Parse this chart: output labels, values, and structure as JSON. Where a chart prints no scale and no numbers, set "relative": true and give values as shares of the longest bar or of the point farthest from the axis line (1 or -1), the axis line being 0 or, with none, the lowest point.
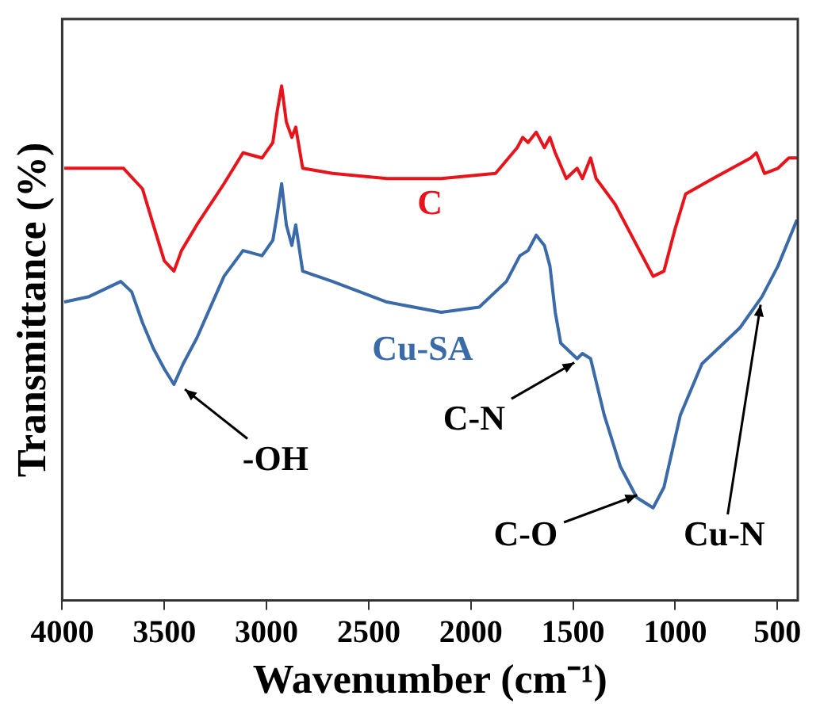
{
  "chart_data": {
    "type": "line",
    "xlabel": "Wavenumber (cm⁻¹)",
    "ylabel": "Transmittance (%)",
    "relative": true,
    "xlim": [
      4000,
      400
    ],
    "xticks": [
      4000,
      3500,
      3000,
      2500,
      2000,
      1500,
      1000,
      500
    ],
    "grid": false,
    "legend": false,
    "marker": "none",
    "line_style": "solid",
    "series": [
      {
        "name": "C",
        "color": "#e8141c",
        "x": [
          3990,
          3700,
          3607,
          3554,
          3500,
          3453,
          3416,
          3341,
          3208,
          3115,
          3022,
          2969,
          2948,
          2926,
          2903,
          2876,
          2857,
          2823,
          2677,
          2411,
          2145,
          1879,
          1773,
          1746,
          1720,
          1680,
          1640,
          1613,
          1587,
          1533,
          1480,
          1454,
          1414,
          1387,
          1294,
          1188,
          1108,
          1055,
          1002,
          949,
          815,
          630,
          603,
          563,
          497,
          444,
          404
        ],
        "values": [
          0.84,
          0.84,
          0.8,
          0.73,
          0.66,
          0.64,
          0.68,
          0.73,
          0.81,
          0.87,
          0.86,
          0.89,
          0.95,
          1.0,
          0.93,
          0.9,
          0.92,
          0.84,
          0.83,
          0.82,
          0.82,
          0.83,
          0.88,
          0.9,
          0.89,
          0.91,
          0.88,
          0.9,
          0.87,
          0.82,
          0.84,
          0.82,
          0.86,
          0.82,
          0.77,
          0.69,
          0.63,
          0.64,
          0.72,
          0.79,
          0.82,
          0.86,
          0.87,
          0.83,
          0.84,
          0.86,
          0.86
        ]
      },
      {
        "name": "Cu-SA",
        "color": "#3a6aa8",
        "x": [
          3990,
          3872,
          3713,
          3660,
          3607,
          3554,
          3500,
          3453,
          3408,
          3341,
          3208,
          3115,
          3022,
          2969,
          2948,
          2926,
          2903,
          2876,
          2857,
          2823,
          2677,
          2411,
          2145,
          1959,
          1826,
          1760,
          1720,
          1680,
          1640,
          1613,
          1587,
          1560,
          1480,
          1454,
          1414,
          1347,
          1268,
          1188,
          1108,
          1055,
          975,
          869,
          683,
          576,
          497,
          404
        ],
        "values": [
          0.58,
          0.59,
          0.62,
          0.6,
          0.54,
          0.49,
          0.45,
          0.42,
          0.46,
          0.51,
          0.63,
          0.68,
          0.67,
          0.7,
          0.75,
          0.81,
          0.73,
          0.69,
          0.73,
          0.64,
          0.62,
          0.58,
          0.56,
          0.57,
          0.62,
          0.67,
          0.68,
          0.71,
          0.69,
          0.65,
          0.56,
          0.5,
          0.47,
          0.48,
          0.47,
          0.36,
          0.26,
          0.2,
          0.18,
          0.22,
          0.36,
          0.46,
          0.53,
          0.59,
          0.65,
          0.74
        ]
      }
    ],
    "annotations": [
      {
        "text": "-OH",
        "x": 3430,
        "y": 0.42
      },
      {
        "text": "C-N",
        "x": 1460,
        "y": 0.47
      },
      {
        "text": "C-O",
        "x": 1150,
        "y": 0.21
      },
      {
        "text": "Cu-N",
        "x": 576,
        "y": 0.59
      }
    ]
  }
}
